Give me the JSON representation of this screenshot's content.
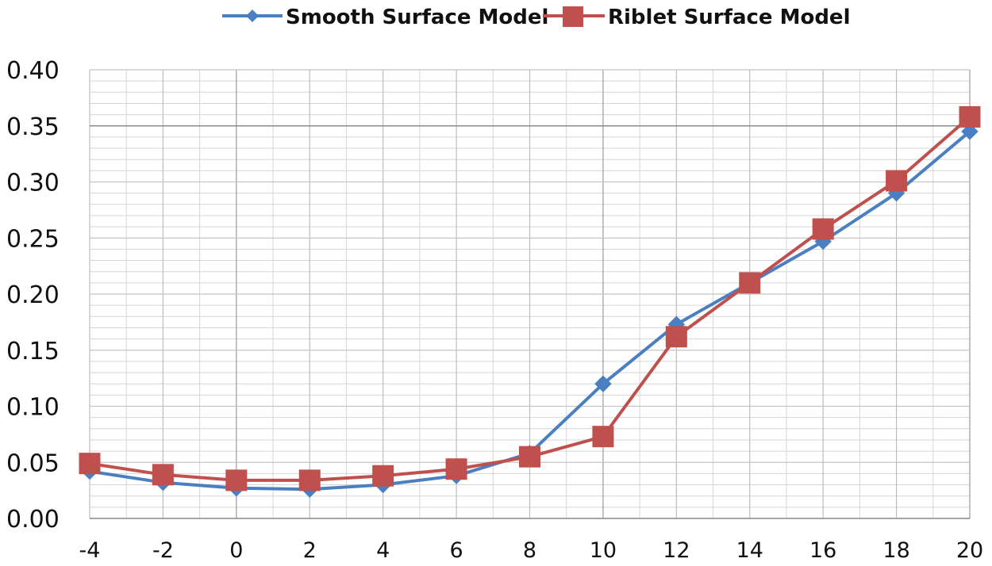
{
  "chart_data": {
    "type": "line",
    "title": "",
    "xlabel": "",
    "ylabel": "",
    "x": [
      -4,
      -2,
      0,
      2,
      4,
      6,
      8,
      10,
      12,
      14,
      16,
      18,
      20
    ],
    "xlim": [
      -4,
      20
    ],
    "ylim": [
      0,
      0.4
    ],
    "x_ticks": [
      "-4",
      "-2",
      "0",
      "2",
      "4",
      "6",
      "8",
      "10",
      "12",
      "14",
      "16",
      "18",
      "20"
    ],
    "y_ticks": [
      "0.00",
      "0.05",
      "0.10",
      "0.15",
      "0.20",
      "0.25",
      "0.30",
      "0.35",
      "0.40"
    ],
    "grid": true,
    "legend_position": "top",
    "series": [
      {
        "name": "Smooth Surface Model",
        "color": "#4a7fc1",
        "marker": "diamond",
        "values": [
          0.042,
          0.032,
          0.027,
          0.026,
          0.03,
          0.038,
          0.058,
          0.12,
          0.173,
          0.21,
          0.247,
          0.29,
          0.345
        ]
      },
      {
        "name": "Riblet Surface Model",
        "color": "#c0504d",
        "marker": "square",
        "values": [
          0.049,
          0.039,
          0.034,
          0.034,
          0.038,
          0.044,
          0.055,
          0.073,
          0.162,
          0.21,
          0.258,
          0.301,
          0.358
        ]
      }
    ]
  }
}
